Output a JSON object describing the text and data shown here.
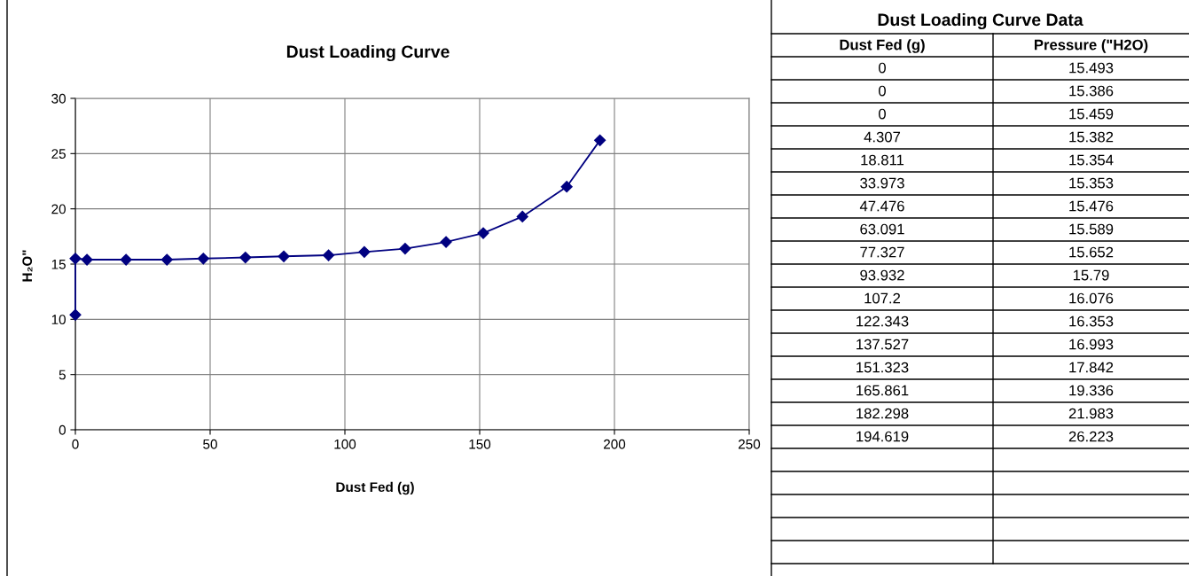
{
  "chart_data": [
    {
      "type": "line",
      "title": "Dust Loading Curve",
      "xlabel": "Dust Fed (g)",
      "ylabel": "H₂O\"",
      "x": [
        0,
        0,
        4.307,
        18.811,
        33.973,
        47.476,
        63.091,
        77.327,
        93.932,
        107.2,
        122.343,
        137.527,
        151.323,
        165.861,
        182.298,
        194.619
      ],
      "series": [
        {
          "color": "#000080",
          "values": [
            10.4,
            15.5,
            15.4,
            15.4,
            15.4,
            15.5,
            15.6,
            15.7,
            15.8,
            16.1,
            16.4,
            17.0,
            17.8,
            19.3,
            22.0,
            26.2
          ]
        }
      ],
      "xlim": [
        0,
        250
      ],
      "xticks": [
        0,
        50,
        100,
        150,
        200,
        250
      ],
      "ylim": [
        0,
        30
      ],
      "yticks": [
        0,
        5,
        10,
        15,
        20,
        25,
        30
      ],
      "grid": true,
      "marker": "diamond",
      "line_style": "solid"
    },
    {
      "type": "other",
      "title": "Dust Loading Curve Data",
      "annotations": [
        "Dust Fed (g)",
        "Pressure (\"H2O)",
        "0",
        "15.493",
        "0",
        "15.386",
        "0",
        "15.459",
        "4.307",
        "15.382",
        "18.811",
        "15.354",
        "33.973",
        "15.353",
        "47.476",
        "15.476",
        "63.091",
        "15.589",
        "77.327",
        "15.652",
        "93.932",
        "15.79",
        "107.2",
        "16.076",
        "122.343",
        "16.353",
        "137.527",
        "16.993",
        "151.323",
        "17.842",
        "165.861",
        "19.336",
        "182.298",
        "21.983",
        "194.619",
        "26.223"
      ]
    }
  ]
}
